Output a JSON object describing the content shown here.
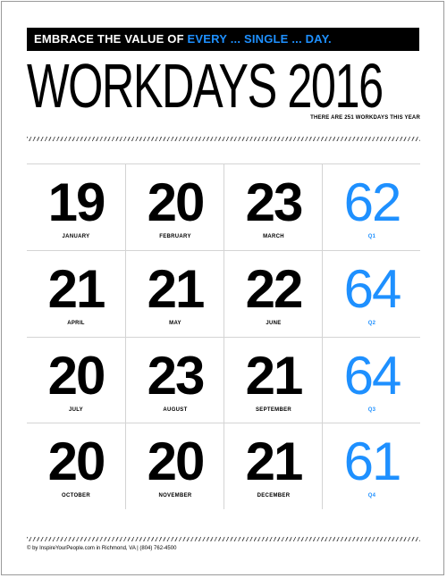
{
  "banner": {
    "prefix": "EMBRACE THE VALUE OF ",
    "accent": "EVERY ... SINGLE ... DAY."
  },
  "title": "WORKDAYS 2016",
  "subtitle": "THERE ARE 251 WORKDAYS THIS YEAR",
  "rows": [
    [
      {
        "value": "19",
        "label": "JANUARY"
      },
      {
        "value": "20",
        "label": "FEBRUARY"
      },
      {
        "value": "23",
        "label": "MARCH"
      },
      {
        "value": "62",
        "label": "Q1"
      }
    ],
    [
      {
        "value": "21",
        "label": "APRIL"
      },
      {
        "value": "21",
        "label": "MAY"
      },
      {
        "value": "22",
        "label": "JUNE"
      },
      {
        "value": "64",
        "label": "Q2"
      }
    ],
    [
      {
        "value": "20",
        "label": "JULY"
      },
      {
        "value": "23",
        "label": "AUGUST"
      },
      {
        "value": "21",
        "label": "SEPTEMBER"
      },
      {
        "value": "64",
        "label": "Q3"
      }
    ],
    [
      {
        "value": "20",
        "label": "OCTOBER"
      },
      {
        "value": "20",
        "label": "NOVEMBER"
      },
      {
        "value": "21",
        "label": "DECEMBER"
      },
      {
        "value": "61",
        "label": "Q4"
      }
    ]
  ],
  "footer": "© by InspireYourPeople.com in Richmond, VA  |  (804) 762-4500",
  "colors": {
    "accent": "#1e90ff",
    "text": "#000000",
    "banner_bg": "#000000"
  }
}
